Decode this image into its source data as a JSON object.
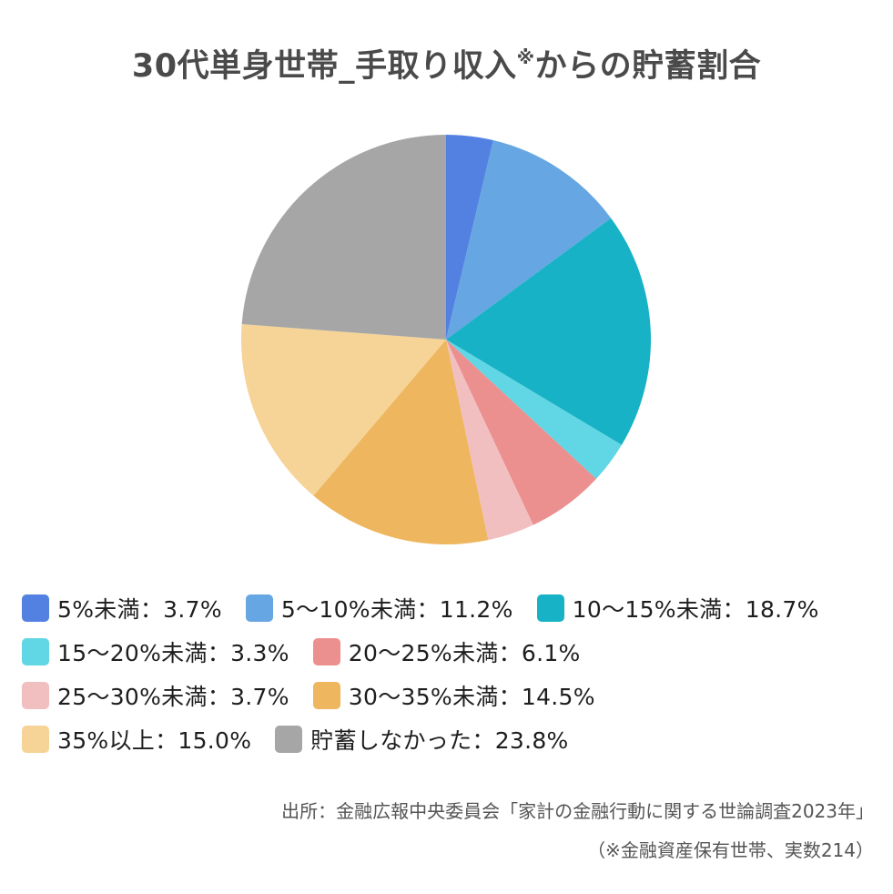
{
  "chart_data": {
    "type": "pie",
    "title_main": "30代単身世帯_手取り収入",
    "title_mark": "※",
    "title_tail": "からの貯蓄割合",
    "categories": [
      "5%未満",
      "5〜10%未満",
      "10〜15%未満",
      "15〜20%未満",
      "20〜25%未満",
      "25〜30%未満",
      "30〜35%未満",
      "35%以上",
      "貯蓄しなかった"
    ],
    "values": [
      3.7,
      11.2,
      18.7,
      3.3,
      6.1,
      3.7,
      14.5,
      15.0,
      23.8
    ],
    "colors": [
      "#5381e2",
      "#66a6e3",
      "#18b2c6",
      "#61d6e4",
      "#ec8f8f",
      "#f2bfc1",
      "#eeb65e",
      "#f6d396",
      "#a6a6a6"
    ],
    "legend_labels": [
      "5%未満：3.7%",
      "5〜10%未満：11.2%",
      "10〜15%未満：18.7%",
      "15〜20%未満：3.3%",
      "20〜25%未満：6.1%",
      "25〜30%未満：3.7%",
      "30〜35%未満：14.5%",
      "35%以上：15.0%",
      "貯蓄しなかった：23.8%"
    ],
    "legend_placement": "bottom",
    "start_angle": "top",
    "direction": "clockwise"
  },
  "source": "出所：金融広報中央委員会「家計の金融行動に関する世論調査2023年」",
  "note": "（※金融資産保有世帯、実数214）"
}
